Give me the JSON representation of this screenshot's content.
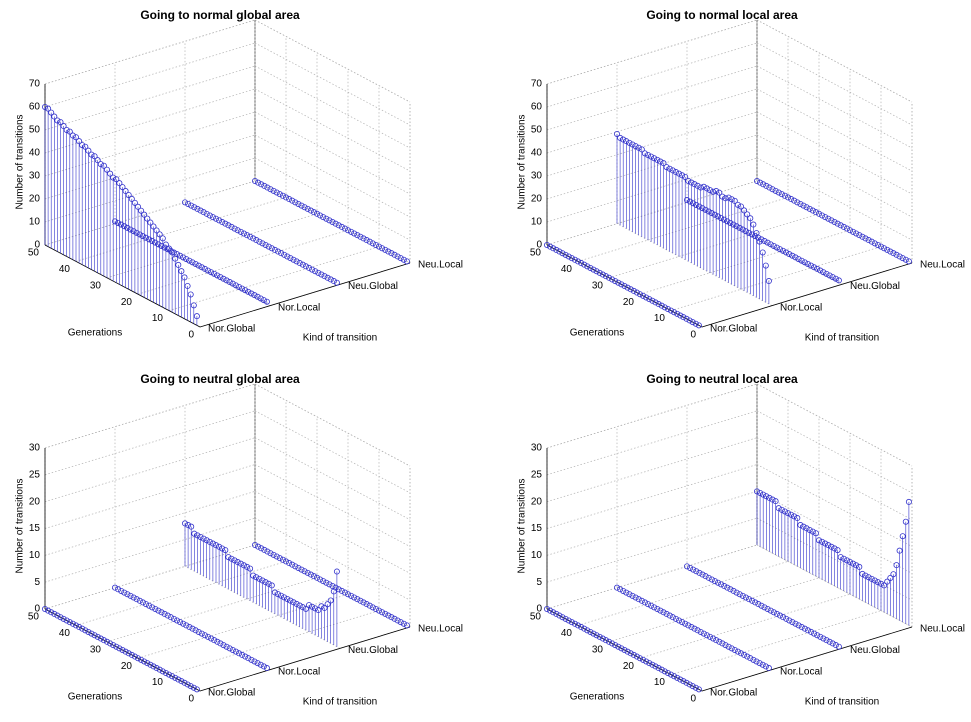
{
  "chart_data": [
    {
      "type": "stem3d",
      "title": "Going to normal global area",
      "xlabel": "Generations",
      "ylabel": "Kind of transition",
      "zlabel": "Number of transitions",
      "categories": [
        "Nor.Global",
        "Nor.Local",
        "Neu.Global",
        "Neu.Local"
      ],
      "color": "#3333cc",
      "grid": true,
      "xlim": [
        0,
        50
      ],
      "xticks": [
        0,
        10,
        20,
        30,
        40,
        50
      ],
      "zlim": [
        0,
        70
      ],
      "zticks": [
        0,
        10,
        20,
        30,
        40,
        50,
        60,
        70
      ],
      "x": [
        1,
        2,
        3,
        4,
        5,
        6,
        7,
        8,
        9,
        10,
        11,
        12,
        13,
        14,
        15,
        16,
        17,
        18,
        19,
        20,
        21,
        22,
        23,
        24,
        25,
        26,
        27,
        28,
        29,
        30,
        31,
        32,
        33,
        34,
        35,
        36,
        37,
        38,
        39,
        40,
        41,
        42,
        43,
        44,
        45,
        46,
        47,
        48,
        49,
        50
      ],
      "series": [
        {
          "values": [
            4,
            8,
            12,
            15,
            18,
            20,
            22,
            24,
            26,
            27,
            28,
            30,
            31,
            32,
            33,
            34,
            35,
            36,
            37,
            38,
            39,
            40,
            41,
            42,
            43,
            44,
            45,
            45,
            46,
            47,
            48,
            48,
            49,
            50,
            50,
            51,
            52,
            52,
            53,
            54,
            54,
            55,
            55,
            56,
            57,
            57,
            58,
            59,
            60,
            60
          ]
        },
        {
          "values": [
            1,
            1,
            1,
            1,
            1,
            1,
            1,
            1,
            1,
            1,
            1,
            1,
            1,
            1,
            1,
            1,
            1,
            1,
            1,
            1,
            1,
            1,
            1,
            1,
            1,
            1,
            1,
            1,
            1,
            1,
            1,
            1,
            1,
            1,
            1,
            1,
            1,
            1,
            1,
            1,
            1,
            1,
            1,
            1,
            1,
            1,
            1,
            1,
            1,
            1
          ]
        },
        {
          "values": [
            0,
            0,
            0,
            0,
            0,
            0,
            0,
            0,
            0,
            0,
            0,
            0,
            0,
            0,
            0,
            0,
            0,
            0,
            0,
            0,
            0,
            0,
            0,
            0,
            0,
            0,
            0,
            0,
            0,
            0,
            0,
            0,
            0,
            0,
            0,
            0,
            0,
            0,
            0,
            0,
            0,
            0,
            0,
            0,
            0,
            0,
            0,
            0,
            0,
            0
          ]
        },
        {
          "values": [
            0,
            0,
            0,
            0,
            0,
            0,
            0,
            0,
            0,
            0,
            0,
            0,
            0,
            0,
            0,
            0,
            0,
            0,
            0,
            0,
            0,
            0,
            0,
            0,
            0,
            0,
            0,
            0,
            0,
            0,
            0,
            0,
            0,
            0,
            0,
            0,
            0,
            0,
            0,
            0,
            0,
            0,
            0,
            0,
            0,
            0,
            0,
            0,
            0,
            0
          ]
        }
      ]
    },
    {
      "type": "stem3d",
      "title": "Going to normal local area",
      "xlabel": "Generations",
      "ylabel": "Kind of transition",
      "zlabel": "Number of transitions",
      "categories": [
        "Nor.Global",
        "Nor.Local",
        "Neu.Global",
        "Neu.Local"
      ],
      "color": "#3333cc",
      "grid": true,
      "xlim": [
        0,
        50
      ],
      "xticks": [
        0,
        10,
        20,
        30,
        40,
        50
      ],
      "zlim": [
        0,
        70
      ],
      "zticks": [
        0,
        10,
        20,
        30,
        40,
        50,
        60,
        70
      ],
      "x": [
        1,
        2,
        3,
        4,
        5,
        6,
        7,
        8,
        9,
        10,
        11,
        12,
        13,
        14,
        15,
        16,
        17,
        18,
        19,
        20,
        21,
        22,
        23,
        24,
        25,
        26,
        27,
        28,
        29,
        30,
        31,
        32,
        33,
        34,
        35,
        36,
        37,
        38,
        39,
        40,
        41,
        42,
        43,
        44,
        45,
        46,
        47,
        48,
        49,
        50
      ],
      "series": [
        {
          "values": [
            0,
            0,
            0,
            0,
            0,
            0,
            0,
            0,
            0,
            0,
            0,
            0,
            0,
            0,
            0,
            0,
            0,
            0,
            0,
            0,
            0,
            0,
            0,
            0,
            0,
            0,
            0,
            0,
            0,
            0,
            0,
            0,
            0,
            0,
            0,
            0,
            0,
            0,
            0,
            0,
            0,
            0,
            0,
            0,
            0,
            0,
            0,
            0,
            0,
            0
          ]
        },
        {
          "values": [
            10,
            16,
            21,
            25,
            28,
            31,
            33,
            34,
            35,
            36,
            36,
            37,
            37,
            37,
            36,
            36,
            37,
            37,
            36,
            36,
            36,
            36,
            35,
            35,
            35,
            35,
            35,
            36,
            36,
            36,
            36,
            36,
            36,
            36,
            37,
            37,
            37,
            37,
            37,
            37,
            37,
            38,
            38,
            38,
            38,
            38,
            38,
            38,
            38,
            39
          ]
        },
        {
          "values": [
            1,
            1,
            1,
            1,
            1,
            1,
            1,
            1,
            1,
            1,
            1,
            1,
            1,
            1,
            1,
            1,
            1,
            1,
            1,
            1,
            1,
            1,
            1,
            1,
            1,
            1,
            1,
            1,
            1,
            1,
            1,
            1,
            1,
            1,
            1,
            1,
            1,
            1,
            1,
            1,
            1,
            1,
            1,
            1,
            1,
            1,
            1,
            1,
            1,
            1
          ]
        },
        {
          "values": [
            0,
            0,
            0,
            0,
            0,
            0,
            0,
            0,
            0,
            0,
            0,
            0,
            0,
            0,
            0,
            0,
            0,
            0,
            0,
            0,
            0,
            0,
            0,
            0,
            0,
            0,
            0,
            0,
            0,
            0,
            0,
            0,
            0,
            0,
            0,
            0,
            0,
            0,
            0,
            0,
            0,
            0,
            0,
            0,
            0,
            0,
            0,
            0,
            0,
            0
          ]
        }
      ]
    },
    {
      "type": "stem3d",
      "title": "Going to neutral global area",
      "xlabel": "Generations",
      "ylabel": "Kind of transition",
      "zlabel": "Number of transitions",
      "categories": [
        "Nor.Global",
        "Nor.Local",
        "Neu.Global",
        "Neu.Local"
      ],
      "color": "#3333cc",
      "grid": true,
      "xlim": [
        0,
        50
      ],
      "xticks": [
        0,
        10,
        20,
        30,
        40,
        50
      ],
      "zlim": [
        0,
        30
      ],
      "zticks": [
        0,
        5,
        10,
        15,
        20,
        25,
        30
      ],
      "x": [
        1,
        2,
        3,
        4,
        5,
        6,
        7,
        8,
        9,
        10,
        11,
        12,
        13,
        14,
        15,
        16,
        17,
        18,
        19,
        20,
        21,
        22,
        23,
        24,
        25,
        26,
        27,
        28,
        29,
        30,
        31,
        32,
        33,
        34,
        35,
        36,
        37,
        38,
        39,
        40,
        41,
        42,
        43,
        44,
        45,
        46,
        47,
        48,
        49,
        50
      ],
      "series": [
        {
          "values": [
            0,
            0,
            0,
            0,
            0,
            0,
            0,
            0,
            0,
            0,
            0,
            0,
            0,
            0,
            0,
            0,
            0,
            0,
            0,
            0,
            0,
            0,
            0,
            0,
            0,
            0,
            0,
            0,
            0,
            0,
            0,
            0,
            0,
            0,
            0,
            0,
            0,
            0,
            0,
            0,
            0,
            0,
            0,
            0,
            0,
            0,
            0,
            0,
            0,
            0
          ]
        },
        {
          "values": [
            0,
            0,
            0,
            0,
            0,
            0,
            0,
            0,
            0,
            0,
            0,
            0,
            0,
            0,
            0,
            0,
            0,
            0,
            0,
            0,
            0,
            0,
            0,
            0,
            0,
            0,
            0,
            0,
            0,
            0,
            0,
            0,
            0,
            0,
            0,
            0,
            0,
            0,
            0,
            0,
            0,
            0,
            0,
            0,
            0,
            0,
            0,
            0,
            0,
            0
          ]
        },
        {
          "values": [
            14,
            10,
            8,
            7,
            6,
            6,
            5,
            5,
            5,
            5,
            4,
            4,
            4,
            4,
            4,
            4,
            4,
            4,
            4,
            4,
            4,
            5,
            5,
            5,
            5,
            5,
            5,
            5,
            6,
            6,
            6,
            6,
            6,
            6,
            6,
            6,
            7,
            7,
            7,
            7,
            7,
            7,
            7,
            7,
            7,
            7,
            7,
            8,
            8,
            8
          ]
        },
        {
          "values": [
            0,
            0,
            0,
            0,
            0,
            0,
            0,
            0,
            0,
            0,
            0,
            0,
            0,
            0,
            0,
            0,
            0,
            0,
            0,
            0,
            0,
            0,
            0,
            0,
            0,
            0,
            0,
            0,
            0,
            0,
            0,
            0,
            0,
            0,
            0,
            0,
            0,
            0,
            0,
            0,
            0,
            0,
            0,
            0,
            0,
            0,
            0,
            0,
            0,
            0
          ]
        }
      ]
    },
    {
      "type": "stem3d",
      "title": "Going to neutral local area",
      "xlabel": "Generations",
      "ylabel": "Kind of transition",
      "zlabel": "Number of transitions",
      "categories": [
        "Nor.Global",
        "Nor.Local",
        "Neu.Global",
        "Neu.Local"
      ],
      "color": "#3333cc",
      "grid": true,
      "xlim": [
        0,
        50
      ],
      "xticks": [
        0,
        10,
        20,
        30,
        40,
        50
      ],
      "zlim": [
        0,
        30
      ],
      "zticks": [
        0,
        5,
        10,
        15,
        20,
        25,
        30
      ],
      "x": [
        1,
        2,
        3,
        4,
        5,
        6,
        7,
        8,
        9,
        10,
        11,
        12,
        13,
        14,
        15,
        16,
        17,
        18,
        19,
        20,
        21,
        22,
        23,
        24,
        25,
        26,
        27,
        28,
        29,
        30,
        31,
        32,
        33,
        34,
        35,
        36,
        37,
        38,
        39,
        40,
        41,
        42,
        43,
        44,
        45,
        46,
        47,
        48,
        49,
        50
      ],
      "series": [
        {
          "values": [
            0,
            0,
            0,
            0,
            0,
            0,
            0,
            0,
            0,
            0,
            0,
            0,
            0,
            0,
            0,
            0,
            0,
            0,
            0,
            0,
            0,
            0,
            0,
            0,
            0,
            0,
            0,
            0,
            0,
            0,
            0,
            0,
            0,
            0,
            0,
            0,
            0,
            0,
            0,
            0,
            0,
            0,
            0,
            0,
            0,
            0,
            0,
            0,
            0,
            0
          ]
        },
        {
          "values": [
            0,
            0,
            0,
            0,
            0,
            0,
            0,
            0,
            0,
            0,
            0,
            0,
            0,
            0,
            0,
            0,
            0,
            0,
            0,
            0,
            0,
            0,
            0,
            0,
            0,
            0,
            0,
            0,
            0,
            0,
            0,
            0,
            0,
            0,
            0,
            0,
            0,
            0,
            0,
            0,
            0,
            0,
            0,
            0,
            0,
            0,
            0,
            0,
            0,
            0
          ]
        },
        {
          "values": [
            0,
            0,
            0,
            0,
            0,
            0,
            0,
            0,
            0,
            0,
            0,
            0,
            0,
            0,
            0,
            0,
            0,
            0,
            0,
            0,
            0,
            0,
            0,
            0,
            0,
            0,
            0,
            0,
            0,
            0,
            0,
            0,
            0,
            0,
            0,
            0,
            0,
            0,
            0,
            0,
            0,
            0,
            0,
            0,
            0,
            0,
            0,
            0,
            0,
            0
          ]
        },
        {
          "values": [
            23,
            19,
            16,
            13,
            10,
            8,
            7,
            6,
            5,
            5,
            5,
            5,
            5,
            5,
            5,
            5,
            6,
            6,
            6,
            6,
            6,
            6,
            6,
            7,
            7,
            7,
            7,
            7,
            7,
            7,
            8,
            8,
            8,
            8,
            8,
            8,
            9,
            9,
            9,
            9,
            9,
            9,
            9,
            10,
            10,
            10,
            10,
            10,
            10,
            10
          ]
        }
      ]
    }
  ]
}
